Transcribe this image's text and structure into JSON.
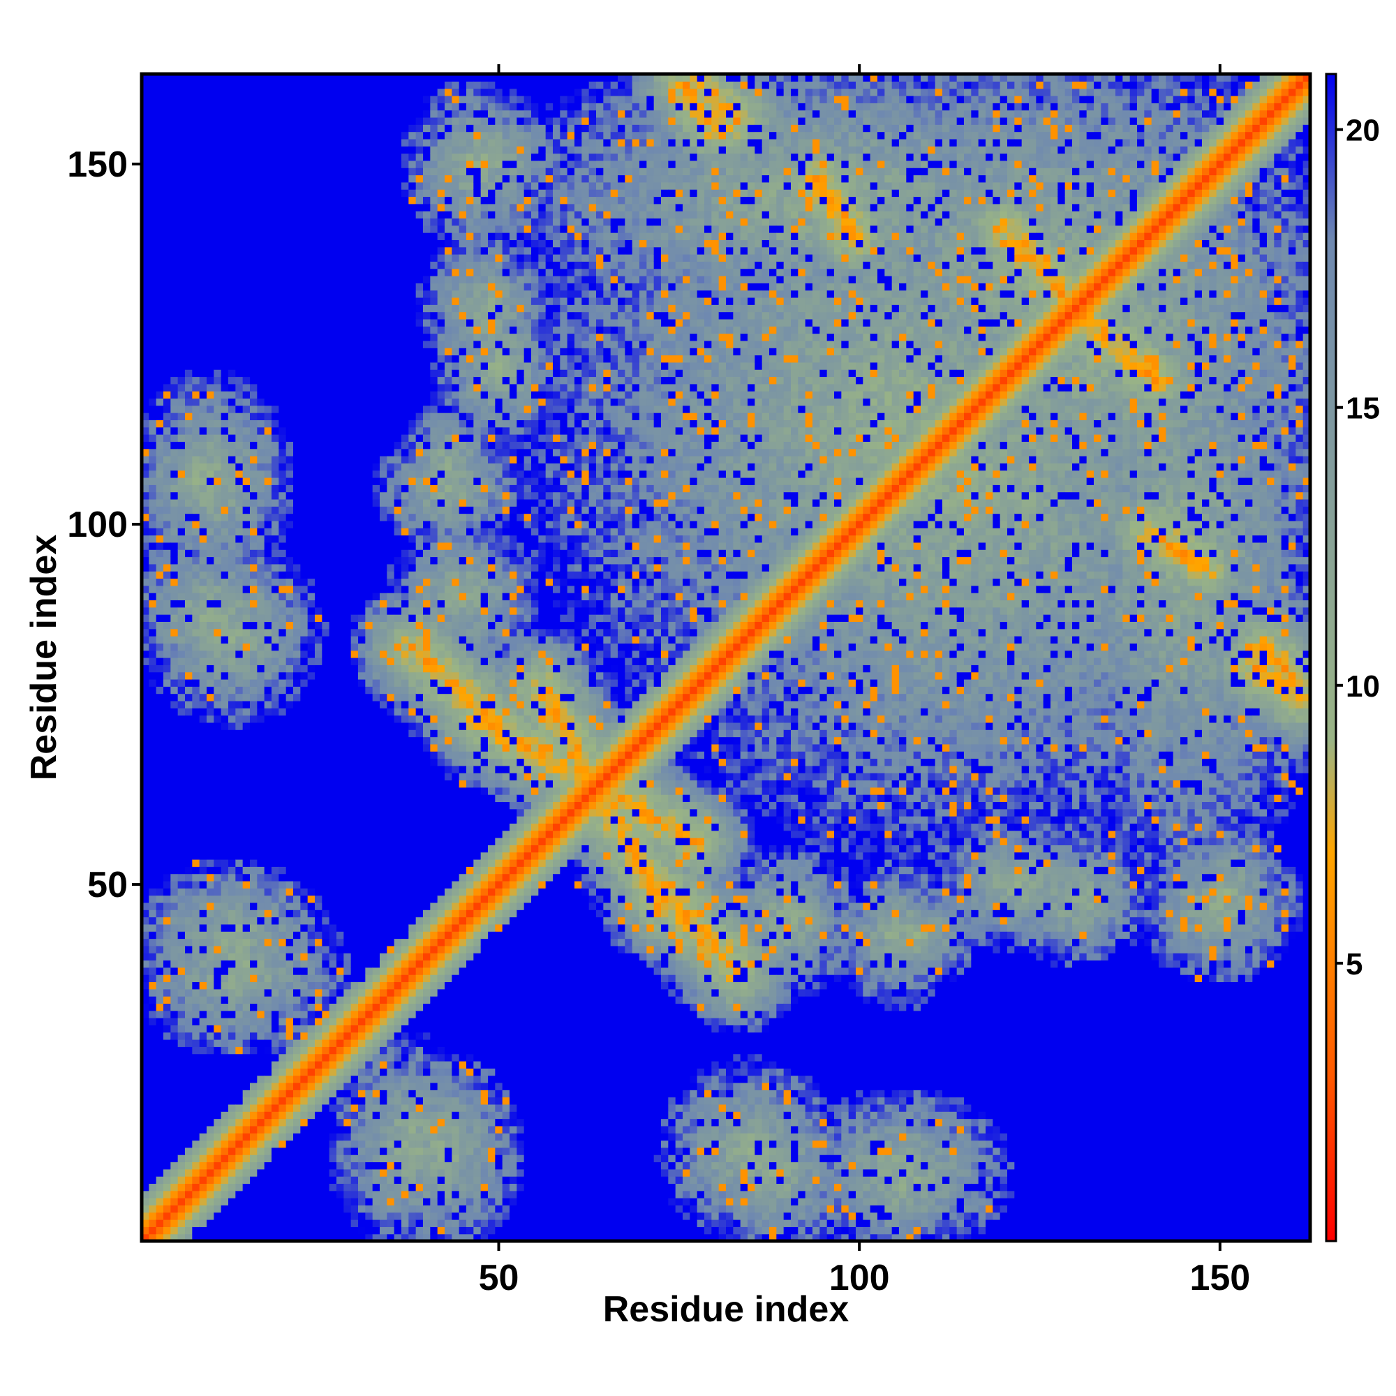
{
  "chart_data": {
    "type": "heatmap",
    "title": "",
    "xlabel": "Residue index",
    "ylabel": "Residue index",
    "xlim": [
      1,
      162
    ],
    "ylim": [
      1,
      162
    ],
    "x_ticks": [
      50,
      100,
      150
    ],
    "y_ticks": [
      50,
      100,
      150
    ],
    "value_range": [
      0,
      21
    ],
    "colorbar": {
      "ticks": [
        5,
        10,
        15,
        20
      ],
      "colors": [
        "#ff0000",
        "#ff5a00",
        "#ffa500",
        "#9ab485",
        "#6f89b0",
        "#0000f0"
      ],
      "stops": [
        0,
        3,
        7,
        9,
        18,
        21
      ]
    },
    "regions": [
      {
        "kind": "diagonal",
        "from": 1,
        "to": 162,
        "width": 6
      },
      {
        "kind": "antiparallel",
        "a": [
          47,
          73
        ],
        "b": [
          77,
          56
        ],
        "strength": 0.8
      },
      {
        "kind": "antiparallel",
        "a": [
          72,
          50
        ],
        "b": [
          83,
          38
        ],
        "strength": 0.8
      },
      {
        "kind": "antiparallel",
        "a": [
          140,
          99
        ],
        "b": [
          148,
          94
        ],
        "strength": 0.8
      },
      {
        "kind": "antiparallel",
        "a": [
          120,
          141
        ],
        "b": [
          132,
          128
        ],
        "strength": 0.7
      },
      {
        "kind": "antiparallel",
        "a": [
          94,
          148
        ],
        "b": [
          99,
          141
        ],
        "strength": 0.7
      },
      {
        "kind": "antiparallel",
        "a": [
          78,
          161
        ],
        "b": [
          83,
          156
        ],
        "strength": 0.6
      },
      {
        "kind": "antiparallel",
        "a": [
          155,
          80
        ],
        "b": [
          161,
          76
        ],
        "strength": 0.6
      },
      {
        "kind": "blob",
        "center": [
          49,
          151
        ],
        "size": [
          9,
          7
        ]
      },
      {
        "kind": "blob",
        "center": [
          48,
          130
        ],
        "size": [
          8,
          9
        ]
      },
      {
        "kind": "blob",
        "center": [
          43,
          108
        ],
        "size": [
          6,
          8
        ]
      },
      {
        "kind": "blob",
        "center": [
          8,
          106
        ],
        "size": [
          8,
          9
        ]
      },
      {
        "kind": "blob",
        "center": [
          10,
          88
        ],
        "size": [
          10,
          10
        ]
      },
      {
        "kind": "blob",
        "center": [
          13,
          42
        ],
        "size": [
          12,
          10
        ]
      },
      {
        "kind": "blob",
        "center": [
          38,
          14
        ],
        "size": [
          10,
          13
        ]
      },
      {
        "kind": "blob",
        "center": [
          85,
          13
        ],
        "size": [
          11,
          11
        ]
      },
      {
        "kind": "blob",
        "center": [
          106,
          10
        ],
        "size": [
          13,
          10
        ]
      },
      {
        "kind": "blob",
        "center": [
          105,
          43
        ],
        "size": [
          7,
          9
        ]
      },
      {
        "kind": "blob",
        "center": [
          122,
          50
        ],
        "size": [
          10,
          8
        ]
      },
      {
        "kind": "blob",
        "center": [
          150,
          47
        ],
        "size": [
          10,
          9
        ]
      },
      {
        "kind": "blob",
        "center": [
          90,
          45
        ],
        "size": [
          9,
          9
        ]
      },
      {
        "kind": "blob",
        "center": [
          115,
          105
        ],
        "size": [
          45,
          45
        ]
      },
      {
        "kind": "blob",
        "center": [
          125,
          135
        ],
        "size": [
          35,
          30
        ]
      },
      {
        "kind": "blob",
        "center": [
          145,
          95
        ],
        "size": [
          18,
          40
        ]
      }
    ]
  }
}
